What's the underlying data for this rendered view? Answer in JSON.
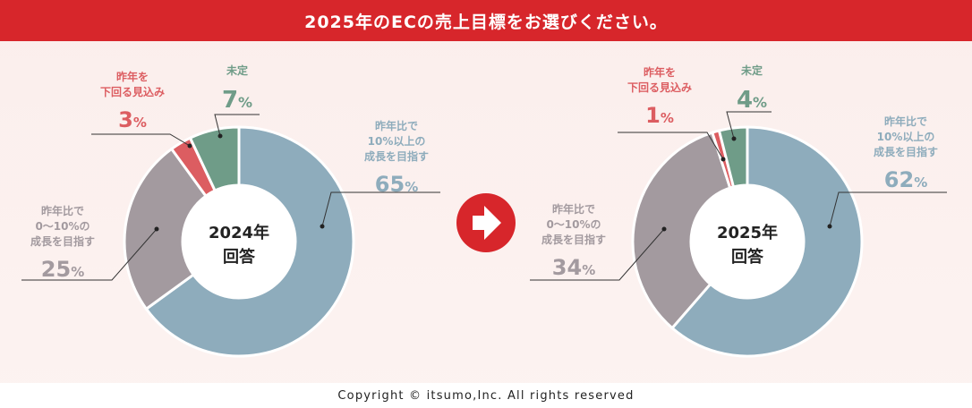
{
  "title": "2025年のECの売上目標をお選びください。",
  "footer": "Copyright © itsumo,Inc. All rights reserved",
  "colors": {
    "title_bg": "#d7262b",
    "aim_over_10": "#8eacbc",
    "aim_0_10": "#a39a9f",
    "below": "#dc5d61",
    "undecided": "#6f9c88",
    "arrow_bg": "#d7262b"
  },
  "icons": {
    "arrow": "right-arrow-icon"
  },
  "chart_data": [
    {
      "type": "pie",
      "title": "2024年 回答",
      "center_label": [
        "2024年",
        "回答"
      ],
      "categories": [
        "昨年比で10%以上の成長を目指す",
        "昨年比で0〜10%の成長を目指す",
        "昨年を下回る見込み",
        "未定"
      ],
      "label_lines": [
        [
          "昨年比で",
          "10%以上の",
          "成長を目指す"
        ],
        [
          "昨年比で",
          "0〜10%の",
          "成長を目指す"
        ],
        [
          "昨年を",
          "下回る見込み"
        ],
        [
          "未定"
        ]
      ],
      "values": [
        65,
        25,
        3,
        7
      ],
      "unit": "%"
    },
    {
      "type": "pie",
      "title": "2025年 回答",
      "center_label": [
        "2025年",
        "回答"
      ],
      "categories": [
        "昨年比で10%以上の成長を目指す",
        "昨年比で0〜10%の成長を目指す",
        "昨年を下回る見込み",
        "未定"
      ],
      "label_lines": [
        [
          "昨年比で",
          "10%以上の",
          "成長を目指す"
        ],
        [
          "昨年比で",
          "0〜10%の",
          "成長を目指す"
        ],
        [
          "昨年を",
          "下回る見込み"
        ],
        [
          "未定"
        ]
      ],
      "values": [
        62,
        34,
        1,
        4
      ],
      "unit": "%"
    }
  ]
}
